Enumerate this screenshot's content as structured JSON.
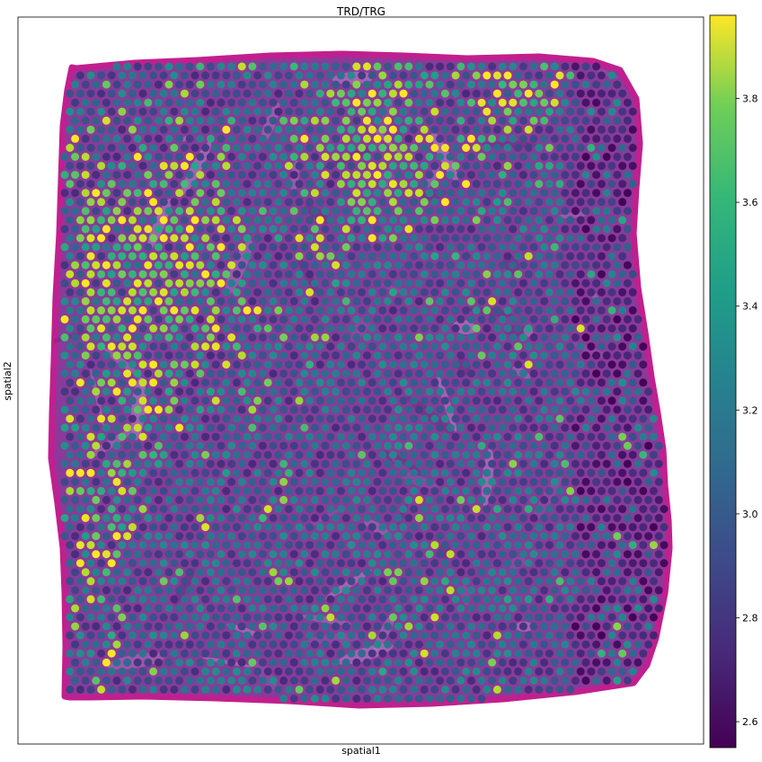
{
  "chart_data": {
    "type": "scatter",
    "title": "TRD/TRG",
    "xlabel": "spatial1",
    "ylabel": "spatial2",
    "x_ticks": [],
    "y_ticks": [],
    "colorbar": {
      "colormap": "viridis",
      "range": [
        2.55,
        3.96
      ],
      "ticks": [
        2.6,
        2.8,
        3.0,
        3.2,
        3.4,
        3.6,
        3.8
      ],
      "tick_labels": [
        "2.6",
        "2.8",
        "3.0",
        "3.2",
        "3.4",
        "3.6",
        "3.8"
      ],
      "placement": "right"
    },
    "background": "H&E tissue section image",
    "spot_grid": "hexagonal grid of Visium spots covering the tissue",
    "high_value_regions": [
      "upper-left",
      "top-center"
    ],
    "colors": {
      "tissue_purple": "#8a3a9a",
      "tissue_magenta": "#c0208f",
      "axes_edge": "#000000"
    }
  }
}
